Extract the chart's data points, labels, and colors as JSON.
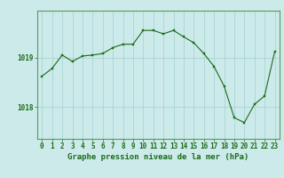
{
  "x": [
    0,
    1,
    2,
    3,
    4,
    5,
    6,
    7,
    8,
    9,
    10,
    11,
    12,
    13,
    14,
    15,
    16,
    17,
    18,
    19,
    20,
    21,
    22,
    23
  ],
  "y": [
    1018.62,
    1018.78,
    1019.05,
    1018.92,
    1019.03,
    1019.05,
    1019.08,
    1019.2,
    1019.27,
    1019.27,
    1019.55,
    1019.55,
    1019.48,
    1019.55,
    1019.42,
    1019.3,
    1019.08,
    1018.82,
    1018.42,
    1017.78,
    1017.68,
    1018.05,
    1018.22,
    1019.12
  ],
  "line_color": "#1a6b1a",
  "marker_color": "#1a6b1a",
  "bg_color": "#cceaea",
  "grid_color": "#aad4d4",
  "axis_color": "#1a6b1a",
  "border_color": "#5a9a5a",
  "xlabel": "Graphe pression niveau de la mer (hPa)",
  "xlabel_fontsize": 6.5,
  "tick_fontsize": 5.5,
  "ytick_labels": [
    "1018",
    "1019"
  ],
  "ytick_values": [
    1018,
    1019
  ],
  "ylim": [
    1017.35,
    1019.95
  ],
  "xlim": [
    -0.5,
    23.5
  ]
}
